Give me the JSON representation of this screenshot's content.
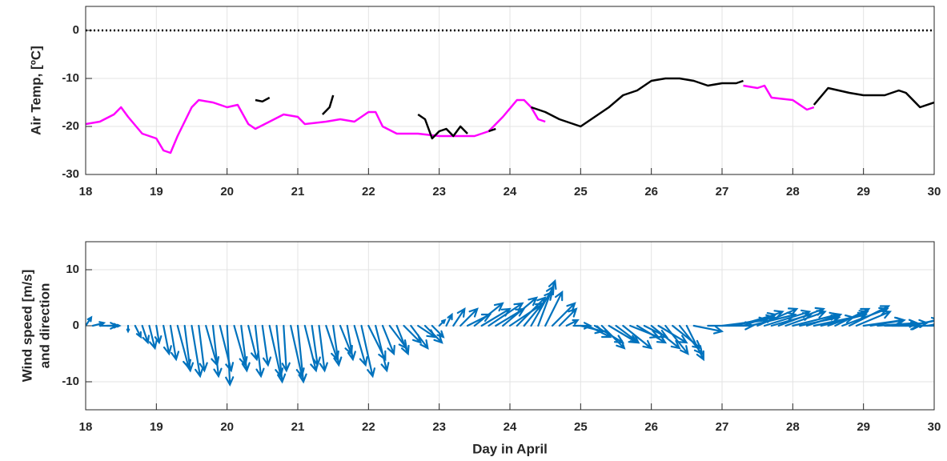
{
  "chart_data": [
    {
      "type": "line",
      "ylabel": "Air Temp, [ºC]",
      "xlim": [
        18,
        30
      ],
      "xticks": [
        18,
        19,
        20,
        21,
        22,
        23,
        24,
        25,
        26,
        27,
        28,
        29,
        30
      ],
      "ylim": [
        -30,
        5
      ],
      "yticks": [
        -30,
        -20,
        -10,
        0
      ],
      "grid": true,
      "refline": 0,
      "refline_style": "dotted",
      "refline_color": "#000000",
      "series": [
        {
          "color": "#ff00ff",
          "x": [
            18.0,
            18.2,
            18.4,
            18.5,
            18.6,
            18.8,
            19.0,
            19.1,
            19.2,
            19.3,
            19.5,
            19.6,
            19.8,
            20.0,
            20.15,
            20.3,
            20.4,
            20.6,
            20.8,
            21.0,
            21.1,
            21.4,
            21.6,
            21.8,
            22.0,
            22.1,
            22.2,
            22.4,
            22.7,
            23.0,
            23.2,
            23.5,
            23.7,
            23.9,
            24.1,
            24.2,
            24.3,
            24.4,
            24.5,
            25.0,
            27.3,
            27.5,
            27.6,
            27.7,
            28.0,
            28.2,
            28.3
          ],
          "values": [
            -19.5,
            -19,
            -17.5,
            -16,
            -18,
            -21.5,
            -22.5,
            -25,
            -25.5,
            -22,
            -16,
            -14.5,
            -15,
            -16,
            -15.5,
            -19.5,
            -20.5,
            -19,
            -17.5,
            -18,
            -19.5,
            -19,
            -18.5,
            -19,
            -17,
            -17,
            -20,
            -21.5,
            -21.5,
            -22,
            -22,
            -22,
            -21,
            -18,
            -14.5,
            -14.5,
            -16,
            -18.5,
            -19,
            null,
            -11.5,
            -12,
            -11.5,
            -14,
            -14.5,
            -16.5,
            -16
          ]
        },
        {
          "color": "#000000",
          "x": [
            20.4,
            20.5,
            20.6,
            21.0,
            21.35,
            21.45,
            21.5,
            22.0,
            22.7,
            22.8,
            22.9,
            23.0,
            23.1,
            23.2,
            23.3,
            23.4,
            23.5,
            23.7,
            23.8,
            24.0,
            24.3,
            24.5,
            24.7,
            24.9,
            25.0,
            25.2,
            25.4,
            25.6,
            25.8,
            26.0,
            26.2,
            26.4,
            26.6,
            26.8,
            27.0,
            27.2,
            27.3,
            28.0,
            28.3,
            28.5,
            28.8,
            29.0,
            29.3,
            29.5,
            29.6,
            29.8,
            30.0
          ],
          "values": [
            -14.5,
            -14.8,
            -14,
            null,
            -17.5,
            -16,
            -13.5,
            null,
            -17.5,
            -18.5,
            -22.5,
            -21,
            -20.5,
            -22,
            -20,
            -21.5,
            null,
            -21,
            -20.5,
            null,
            -16,
            -17,
            -18.5,
            -19.5,
            -20,
            -18,
            -16,
            -13.5,
            -12.5,
            -10.5,
            -10,
            -10,
            -10.5,
            -11.5,
            -11,
            -11,
            -10.5,
            null,
            -15.5,
            -12,
            -13,
            -13.5,
            -13.5,
            -12.5,
            -13,
            -16,
            -15
          ]
        }
      ]
    },
    {
      "type": "quiver",
      "ylabel": [
        "Wind speed [m/s]",
        "and direction"
      ],
      "xlabel": "Day in April",
      "xlim": [
        18,
        30
      ],
      "xticks": [
        18,
        19,
        20,
        21,
        22,
        23,
        24,
        25,
        26,
        27,
        28,
        29,
        30
      ],
      "ylim": [
        -15,
        15
      ],
      "yticks": [
        -10,
        0,
        10
      ],
      "grid": true,
      "color": "#0072bd",
      "x": [
        18.0,
        18.1,
        18.2,
        18.3,
        18.4,
        18.6,
        18.7,
        18.8,
        18.9,
        19.0,
        19.1,
        19.2,
        19.3,
        19.4,
        19.5,
        19.6,
        19.7,
        19.8,
        19.9,
        20.0,
        20.1,
        20.2,
        20.3,
        20.4,
        20.5,
        20.6,
        20.7,
        20.8,
        20.9,
        21.0,
        21.1,
        21.2,
        21.3,
        21.4,
        21.5,
        21.6,
        21.7,
        21.8,
        21.9,
        22.0,
        22.1,
        22.2,
        22.3,
        22.4,
        22.5,
        22.6,
        22.7,
        22.8,
        22.9,
        23.0,
        23.1,
        23.2,
        23.3,
        23.4,
        23.5,
        23.6,
        23.7,
        23.8,
        23.9,
        24.0,
        24.1,
        24.2,
        24.3,
        24.4,
        24.5,
        24.6,
        24.7,
        24.8,
        24.9,
        25.0,
        25.1,
        25.2,
        25.3,
        25.4,
        25.5,
        25.6,
        25.7,
        25.8,
        25.9,
        26.0,
        26.1,
        26.2,
        26.3,
        26.4,
        26.5,
        26.6,
        26.8,
        27.0,
        27.1,
        27.2,
        27.3,
        27.4,
        27.5,
        27.6,
        27.7,
        27.8,
        27.9,
        28.0,
        28.1,
        28.2,
        28.3,
        28.4,
        28.5,
        28.6,
        28.7,
        28.8,
        28.9,
        29.0,
        29.1,
        29.2,
        29.3,
        29.4,
        29.5,
        29.6,
        29.7,
        29.8,
        29.9,
        30.0
      ],
      "u": [
        1,
        2,
        3,
        2,
        1,
        0,
        1,
        1,
        1,
        0.5,
        1,
        1,
        2,
        1,
        1.5,
        1,
        2,
        1,
        2,
        0.5,
        2,
        1,
        1.5,
        1,
        1,
        2,
        1,
        0.5,
        2,
        1,
        2,
        1,
        1,
        2,
        1,
        2,
        1,
        2,
        2,
        3,
        2,
        2,
        3,
        2,
        3,
        3,
        3,
        3,
        2,
        1,
        1,
        2,
        3,
        4,
        5,
        5,
        6,
        5,
        6,
        6,
        5,
        5,
        4,
        3,
        3,
        4,
        3,
        2,
        3,
        4,
        4,
        5,
        4,
        5,
        4,
        5,
        5,
        5,
        4,
        5,
        5,
        4,
        5,
        4,
        3,
        5,
        8,
        8,
        8,
        7,
        7,
        8,
        7,
        8,
        7,
        8,
        7,
        8,
        7,
        6,
        7,
        8,
        7,
        6,
        8,
        7,
        6,
        7,
        6,
        7,
        6,
        5,
        5,
        6,
        6,
        4,
        3,
        1
      ],
      "v": [
        1.5,
        0.5,
        0,
        0,
        0,
        -1,
        -2,
        -3,
        -4,
        -3,
        -5,
        -6,
        -7.5,
        -8,
        -9,
        -8,
        -7,
        -9,
        -8,
        -10.5,
        -7,
        -8,
        -6,
        -9,
        -7,
        -9,
        -10,
        -8,
        -9,
        -10,
        -8,
        -7,
        -8,
        -6,
        -7,
        -5,
        -6,
        -7,
        -9,
        -6,
        -8,
        -5,
        -4,
        -5,
        -3,
        -4,
        -2,
        -3,
        -2,
        1,
        2,
        3,
        3,
        2,
        4,
        3,
        4,
        3,
        5,
        4,
        5,
        6,
        7,
        8,
        6,
        4,
        3,
        1,
        0,
        -1,
        -2,
        -3,
        -4,
        -3,
        -3,
        -4,
        -2,
        -3,
        -2,
        -4,
        -3,
        -5,
        -4,
        -5,
        -6,
        -1,
        0,
        1,
        1.5,
        2,
        2.5,
        2,
        3,
        2.5,
        2,
        3,
        2.5,
        2,
        1.5,
        2,
        1.5,
        2,
        2.5,
        3,
        3,
        3.5,
        2.5,
        1,
        1,
        0.5,
        0,
        0,
        0.5,
        1,
        1.5,
        0,
        0.5,
        -1
      ]
    }
  ]
}
